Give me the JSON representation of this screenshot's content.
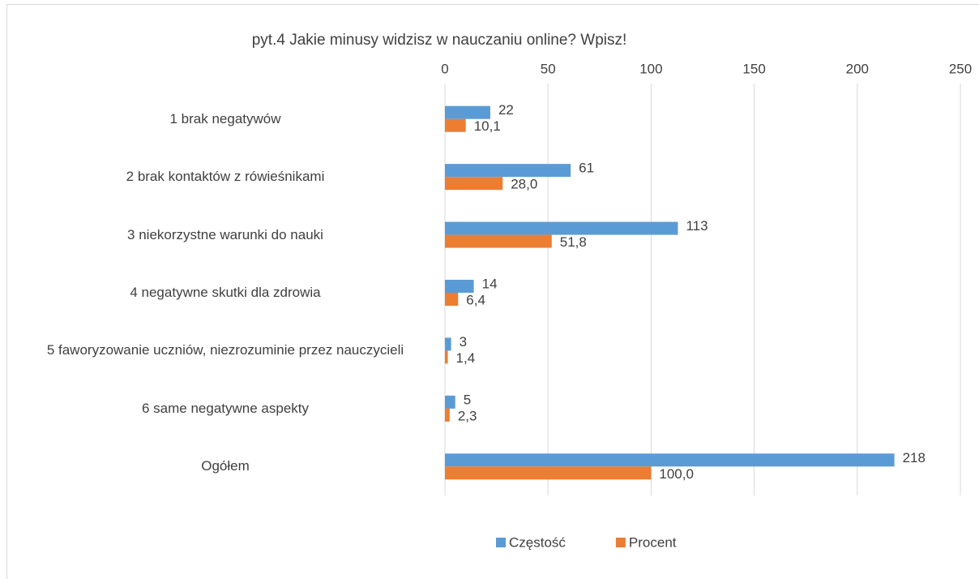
{
  "chart_data": {
    "type": "hbar",
    "title": "pyt.4 Jakie minusy widzisz w nauczaniu online? Wpisz!",
    "categories": [
      "1 brak negatywów",
      "2 brak kontaktów z rówieśnikami",
      "3 niekorzystne warunki do nauki",
      "4 negatywne skutki dla zdrowia",
      "5 faworyzowanie uczniów, niezrozuminie przez nauczycieli",
      "6 same negatywne aspekty",
      "Ogółem"
    ],
    "series": [
      {
        "name": "Częstość",
        "color": "#5b9bd5",
        "values": [
          22,
          61,
          113,
          14,
          3,
          5,
          218
        ]
      },
      {
        "name": "Procent",
        "color": "#ed7d31",
        "values": [
          10.1,
          28.0,
          51.8,
          6.4,
          1.4,
          2.3,
          100.0
        ],
        "value_labels": [
          "10,1",
          "28,0",
          "51,8",
          "6,4",
          "1,4",
          "2,3",
          "100,0"
        ]
      }
    ],
    "xlim": [
      0,
      250
    ],
    "xticks": [
      0,
      50,
      100,
      150,
      200,
      250
    ],
    "grid": true,
    "legend": "bottom"
  }
}
